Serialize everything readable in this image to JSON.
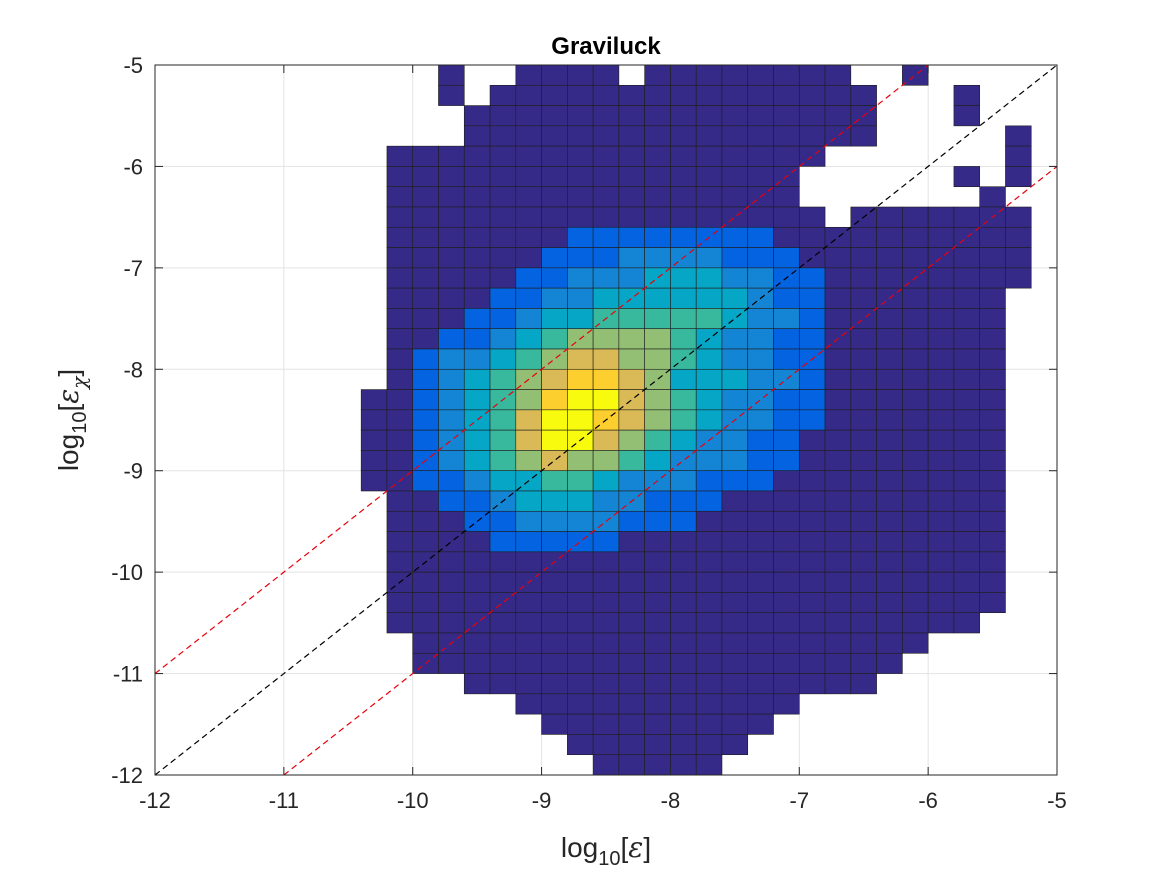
{
  "chart_data": {
    "type": "heatmap",
    "title": "Graviluck",
    "xlabel": {
      "base": "log",
      "sub": "10",
      "open": "[",
      "sym": "ε",
      "close": "]"
    },
    "ylabel": {
      "base": "log",
      "sub": "10",
      "open": "[",
      "sym": "ε",
      "symsub": "χ",
      "close": "]"
    },
    "xlim": [
      -12,
      -5
    ],
    "ylim": [
      -12,
      -5
    ],
    "xticks": [
      -12,
      -11,
      -10,
      -9,
      -8,
      -7,
      -6,
      -5
    ],
    "yticks": [
      -12,
      -11,
      -10,
      -9,
      -8,
      -7,
      -6,
      -5
    ],
    "xtick_labels": [
      "-12",
      "-11",
      "-10",
      "-9",
      "-8",
      "-7",
      "-6",
      "-5"
    ],
    "ytick_labels": [
      "-12",
      "-11",
      "-10",
      "-9",
      "-8",
      "-7",
      "-6",
      "-5"
    ],
    "grid": true,
    "bin_width": 0.2,
    "x_bin_start": -10.8,
    "y_bin_top": -5.0,
    "colormap": [
      "#352a87",
      "#0363e1",
      "#1485d4",
      "#06a7c6",
      "#38b99e",
      "#92bf73",
      "#d9ba56",
      "#fcce2e",
      "#f9fb0e"
    ],
    "cell_value_scale": "relative density 0-8 (colormap index)",
    "grid_rows": [
      ".....0..0000.00000000..0....",
      ".....0.000000000000000...0..",
      "......0000000000000000...0..",
      "......0000000000000000.....0",
      "...00000000000000000.......0",
      "...0000000000000000......0.0",
      "...0000000000000000.......0.",
      "...00000000000000000.0000000",
      "...0000000111111110000000000",
      "...0000001112222111000000000",
      "...0000011222333221100000000",
      "...000011223333332110000000.",
      "...000112334444432210000000.",
      "...001123455554322110000000.",
      "...012234566554322110000000.",
      "...012345677653332210000000.",
      "..0012345788654322110000000.",
      "..0012346887654322110000000.",
      "..0012346886543221100000000.",
      "..0012345655432221100000000.",
      "..0011233443222111000000000.",
      "...001123332211100000000000.",
      "...000112222111000000000000.",
      "...000011111000000000000000.",
      "...000000000000000000000000.",
      "...000000000000000000000000.",
      "...000000000000000000000000.",
      "...00000000000000000000000..",
      "....00000000000000000000....",
      "....0000000000000000000.....",
      "......0000000000000000......",
      "........00000000000.........",
      ".........000000000..........",
      "..........0000000...........",
      "...........00000............"
    ],
    "lines": [
      {
        "name": "1:1",
        "color": "#000000",
        "dash": true,
        "x": [
          -12,
          -5
        ],
        "y": [
          -12,
          -5
        ]
      },
      {
        "name": "+1",
        "color": "#e8000b",
        "dash": true,
        "x": [
          -12,
          -6
        ],
        "y": [
          -11,
          -5
        ]
      },
      {
        "name": "-1",
        "color": "#e8000b",
        "dash": true,
        "x": [
          -11,
          -5
        ],
        "y": [
          -12,
          -6
        ]
      }
    ]
  }
}
